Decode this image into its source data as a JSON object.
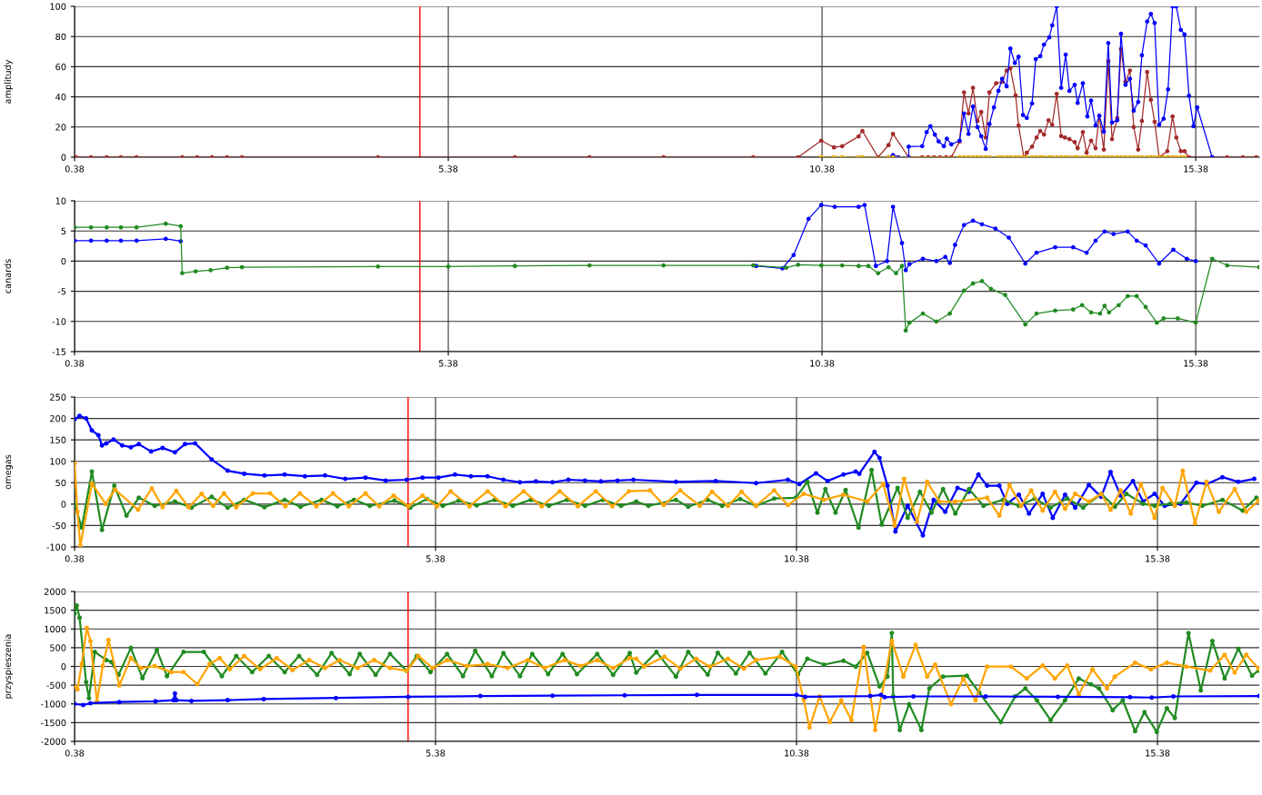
{
  "chart_data": [
    {
      "type": "line",
      "ylabel": "amplitudy",
      "xlim": [
        0.38,
        16.23
      ],
      "xticks": [
        0.38,
        5.38,
        10.38,
        15.38
      ],
      "ylim": [
        0,
        100
      ],
      "yticks": [
        0,
        20,
        40,
        60,
        80,
        100
      ],
      "grid": true,
      "marker": "circle",
      "line_style": "solid",
      "ref_lines": [
        {
          "axis": "x",
          "value": 5.0,
          "color": "#ff0000"
        }
      ],
      "series": [
        {
          "color": "#a52a2a",
          "x": [
            0.4,
            0.6,
            0.81,
            1.0,
            1.21,
            1.82,
            2.02,
            2.22,
            2.42,
            2.62,
            4.44,
            6.27,
            7.27,
            8.26,
            9.46,
            10.06,
            10.37,
            10.54,
            10.65,
            10.87,
            10.92,
            11.13,
            11.27,
            11.33,
            11.54,
            11.72,
            11.8,
            11.88,
            11.96,
            12.04,
            12.11,
            12.22,
            12.28,
            12.34,
            12.4,
            12.46,
            12.51,
            12.57,
            12.62,
            12.71,
            12.79,
            12.85,
            12.9,
            12.97,
            13.01,
            13.08,
            13.12,
            13.19,
            13.25,
            13.3,
            13.35,
            13.41,
            13.46,
            13.52,
            13.58,
            13.63,
            13.69,
            13.76,
            13.8,
            13.87,
            13.92,
            13.98,
            14.04,
            14.09,
            14.15,
            14.21,
            14.26,
            14.33,
            14.38,
            14.44,
            14.5,
            14.55,
            14.61,
            14.66,
            14.73,
            14.78,
            14.83,
            14.89,
            15.0,
            15.07,
            15.12,
            15.18,
            15.23,
            15.29,
            15.6,
            15.8,
            16.01,
            16.19
          ],
          "values": [
            0,
            0,
            0,
            0,
            0,
            0,
            0,
            0,
            0,
            0,
            0,
            0,
            0,
            0,
            0,
            0,
            11,
            6.5,
            7.3,
            13.8,
            17.4,
            0,
            8,
            15.4,
            0,
            0,
            0,
            0,
            0,
            0,
            0,
            10.3,
            43,
            29,
            46,
            24,
            30,
            13,
            43,
            49,
            50,
            57.5,
            59,
            41,
            21,
            0,
            3,
            7,
            13,
            17.4,
            15,
            24.5,
            21.5,
            42,
            14,
            13,
            12,
            10,
            6,
            16.6,
            3,
            11,
            6,
            27.5,
            5,
            63.6,
            12,
            26,
            71.7,
            50,
            57.5,
            20,
            5,
            24,
            56.5,
            38,
            23.5,
            0,
            4,
            27,
            13,
            4,
            4,
            0,
            0,
            0,
            0,
            0
          ]
        },
        {
          "color": "#0000ff",
          "x": [
            11.27,
            11.33,
            11.4,
            11.54,
            11.54,
            11.72,
            11.78,
            11.83,
            11.89,
            11.94,
            12.01,
            12.05,
            12.11,
            12.22,
            12.28,
            12.34,
            12.4,
            12.46,
            12.51,
            12.57,
            12.62,
            12.68,
            12.74,
            12.79,
            12.85,
            12.9,
            12.96,
            13.01,
            13.07,
            13.12,
            13.19,
            13.24,
            13.3,
            13.35,
            13.42,
            13.46,
            13.52,
            13.58,
            13.64,
            13.69,
            13.76,
            13.8,
            13.87,
            13.93,
            13.98,
            14.04,
            14.09,
            14.15,
            14.21,
            14.26,
            14.33,
            14.38,
            14.44,
            14.5,
            14.55,
            14.61,
            14.66,
            14.73,
            14.78,
            14.83,
            14.89,
            14.95,
            15.01,
            15.07,
            15.12,
            15.18,
            15.23,
            15.29,
            15.35,
            15.4,
            15.6
          ],
          "values": [
            0,
            1.4,
            0,
            0,
            7,
            7.3,
            16.6,
            20.6,
            15,
            10.5,
            7.3,
            12.3,
            8.5,
            11,
            29,
            15.4,
            33.6,
            20,
            14,
            5.5,
            22,
            33,
            44,
            52,
            47,
            72,
            62.5,
            66.6,
            28,
            26,
            35.6,
            65,
            67,
            74.7,
            79.4,
            87.4,
            100,
            46,
            68,
            44,
            48,
            36,
            49,
            27,
            37.6,
            21,
            27.5,
            17,
            75.7,
            23,
            24.5,
            81.8,
            48,
            52,
            30.8,
            36.6,
            67.6,
            90,
            95,
            89,
            21.5,
            25.5,
            45,
            100,
            100,
            84.4,
            81.4,
            40.7,
            20.6,
            33,
            0
          ]
        },
        {
          "color": "#e0a800",
          "x": [
            10.37,
            10.54,
            10.65,
            10.87,
            10.92,
            11.27,
            11.33,
            12.22,
            12.28,
            12.34,
            12.4,
            12.46,
            12.51,
            12.57,
            12.62,
            12.74,
            12.79,
            12.85,
            12.9,
            12.96,
            13.01,
            13.07,
            13.12,
            13.19,
            13.24,
            13.3,
            13.35,
            13.42,
            13.46,
            13.52,
            13.58,
            13.64,
            13.69,
            13.76,
            13.8,
            13.87,
            13.93,
            13.98,
            14.04,
            14.09,
            14.15,
            14.21,
            14.26,
            14.33,
            14.38,
            14.44,
            14.5,
            14.55,
            14.61,
            14.66,
            14.73,
            14.78,
            14.83,
            14.89,
            14.95,
            15.01,
            15.07,
            15.12,
            15.18,
            15.23
          ],
          "values": [
            0,
            0,
            0,
            0,
            0,
            0,
            0,
            0,
            0,
            0,
            0,
            0,
            0,
            0,
            0,
            0,
            0,
            0,
            0,
            0,
            0,
            0,
            0,
            0,
            0,
            0,
            0,
            0,
            0,
            0,
            0,
            0,
            0,
            0,
            0,
            0,
            0,
            0,
            0,
            0,
            0,
            0,
            0,
            0,
            0,
            0,
            0,
            0,
            0,
            0,
            0,
            0,
            0,
            0,
            0,
            0,
            0,
            0,
            0,
            0
          ]
        }
      ]
    },
    {
      "type": "line",
      "ylabel": "canards",
      "xlim": [
        0.38,
        16.23
      ],
      "xticks": [
        0.38,
        5.38,
        10.38,
        15.38
      ],
      "ylim": [
        -15,
        10
      ],
      "yticks": [
        -15,
        -10,
        -5,
        0,
        5,
        10
      ],
      "grid": true,
      "marker": "circle",
      "line_style": "solid",
      "ref_lines": [
        {
          "axis": "x",
          "value": 5.0,
          "color": "#ff0000"
        }
      ],
      "series": [
        {
          "color": "#0000ff",
          "x": [
            0.38,
            0.6,
            0.81,
            1.0,
            1.21,
            1.6,
            1.8,
            1.82,
            1.9,
            9.5,
            9.85,
            10.0,
            10.2,
            10.37,
            10.55,
            10.87,
            10.95,
            11.1,
            11.25,
            11.33,
            11.45,
            11.5,
            11.55,
            11.73,
            11.91,
            12.03,
            12.09,
            12.16,
            12.28,
            12.4,
            12.52,
            12.7,
            12.88,
            13.1,
            13.25,
            13.5,
            13.74,
            13.92,
            14.04,
            14.16,
            14.28,
            14.47,
            14.59,
            14.71,
            14.89,
            15.08,
            15.26,
            15.38
          ],
          "values": [
            3.4,
            3.4,
            3.4,
            3.4,
            3.4,
            3.7,
            3.3,
            null,
            null,
            -0.8,
            -1.2,
            1.0,
            7.0,
            9.3,
            9.0,
            9.0,
            9.3,
            -0.8,
            0.0,
            9.0,
            3.0,
            -1.5,
            -0.5,
            0.4,
            0,
            0.7,
            -0.3,
            2.7,
            6,
            6.7,
            6.1,
            5.4,
            3.9,
            -0.4,
            1.4,
            2.3,
            2.3,
            1.4,
            3.4,
            4.9,
            4.5,
            4.9,
            3.4,
            2.6,
            -0.4,
            1.9,
            0.4,
            0
          ]
        },
        {
          "color": "#228b22",
          "x": [
            0.38,
            0.6,
            0.81,
            1.0,
            1.21,
            1.6,
            1.8,
            1.82,
            2.0,
            2.2,
            2.42,
            2.62,
            4.44,
            5.38,
            6.27,
            7.27,
            8.26,
            9.46,
            9.9,
            10.06,
            10.37,
            10.65,
            10.87,
            11.0,
            11.13,
            11.27,
            11.37,
            11.45,
            11.5,
            11.55,
            11.73,
            11.91,
            12.09,
            12.28,
            12.4,
            12.52,
            12.64,
            12.83,
            13.1,
            13.25,
            13.5,
            13.74,
            13.86,
            13.98,
            14.1,
            14.16,
            14.22,
            14.35,
            14.47,
            14.59,
            14.71,
            14.86,
            14.95,
            15.14,
            15.38,
            15.6,
            15.8,
            16.23
          ],
          "values": [
            5.6,
            5.6,
            5.6,
            5.6,
            5.6,
            6.2,
            5.8,
            -2.0,
            -1.7,
            -1.5,
            -1.1,
            -1.0,
            -0.9,
            -0.9,
            -0.8,
            -0.7,
            -0.7,
            -0.7,
            -1.1,
            -0.6,
            -0.7,
            -0.7,
            -0.8,
            -0.8,
            -2.0,
            -1.0,
            -2.0,
            -0.8,
            -11.5,
            -10.2,
            -8.7,
            -10,
            -8.7,
            -4.9,
            -3.7,
            -3.3,
            -4.6,
            -5.6,
            -10.5,
            -8.7,
            -8.2,
            -8,
            -7.3,
            -8.5,
            -8.7,
            -7.4,
            -8.5,
            -7.3,
            -5.8,
            -5.8,
            -7.6,
            -10.2,
            -9.5,
            -9.5,
            -10.2,
            0.4,
            -0.7,
            -1.0
          ]
        }
      ]
    },
    {
      "type": "line",
      "ylabel": "omegas",
      "xlim": [
        0.38,
        16.79
      ],
      "xticks": [
        0.38,
        5.38,
        10.38,
        15.38
      ],
      "ylim": [
        -100,
        250
      ],
      "yticks": [
        -100,
        -50,
        0,
        50,
        100,
        150,
        200,
        250
      ],
      "grid": true,
      "marker": "circle",
      "line_style": "solid",
      "ref_lines": [
        {
          "axis": "x",
          "value": 5.0,
          "color": "#ff0000"
        }
      ],
      "series": [
        {
          "color": "#0000ff",
          "x": [
            0.38,
            0.45,
            0.54,
            0.62,
            0.71,
            0.76,
            0.82,
            0.92,
            1.04,
            1.16,
            1.27,
            1.44,
            1.6,
            1.77,
            1.91,
            2.05,
            2.28,
            2.5,
            2.73,
            3.01,
            3.29,
            3.57,
            3.85,
            4.13,
            4.41,
            4.69,
            4.98,
            5.2,
            5.42,
            5.65,
            5.87,
            6.1,
            6.32,
            6.55,
            6.77,
            7.0,
            7.22,
            7.45,
            7.67,
            7.9,
            8.12,
            8.71,
            9.26,
            9.82,
            10.26,
            10.42,
            10.65,
            10.81,
            11.03,
            11.2,
            11.25,
            11.46,
            11.53,
            11.64,
            11.75,
            11.92,
            12.13,
            12.28,
            12.44,
            12.61,
            12.77,
            12.9,
            13.02,
            13.19,
            13.3,
            13.46,
            13.6,
            13.79,
            13.93,
            14.1,
            14.24,
            14.43,
            14.6,
            14.73,
            14.87,
            15.04,
            15.18,
            15.34,
            15.48,
            15.7,
            15.92,
            16.06,
            16.28,
            16.5,
            16.72
          ],
          "values": [
            198,
            206,
            200,
            172,
            161,
            137,
            142,
            151,
            137,
            133,
            140,
            123,
            131,
            121,
            140,
            142,
            104,
            78,
            71,
            67,
            69,
            65,
            67,
            59,
            62,
            55,
            57,
            62,
            62,
            69,
            65,
            65,
            57,
            51,
            53,
            51,
            57,
            55,
            53,
            55,
            57,
            52,
            54,
            49,
            57,
            47,
            72,
            54,
            69,
            76,
            71,
            122,
            108,
            43,
            -64,
            -4,
            -73,
            10,
            -18,
            38,
            29,
            69,
            43,
            43,
            1,
            22,
            -22,
            24,
            -32,
            22,
            -8,
            45,
            17,
            75,
            20,
            54,
            6,
            24,
            -4,
            1,
            50,
            47,
            63,
            52,
            59
          ]
        },
        {
          "color": "#228b22",
          "x": [
            0.38,
            0.48,
            0.62,
            0.76,
            0.93,
            1.1,
            1.27,
            1.49,
            1.77,
            2.0,
            2.28,
            2.5,
            2.73,
            3.01,
            3.29,
            3.51,
            3.8,
            4.02,
            4.25,
            4.47,
            4.81,
            5.03,
            5.26,
            5.48,
            5.7,
            5.95,
            6.2,
            6.45,
            6.7,
            6.95,
            7.2,
            7.45,
            7.7,
            7.95,
            8.16,
            8.33,
            8.71,
            8.88,
            9.15,
            9.35,
            9.6,
            9.82,
            10.07,
            10.37,
            10.53,
            10.67,
            10.78,
            10.92,
            11.06,
            11.24,
            11.42,
            11.56,
            11.78,
            11.92,
            12.09,
            12.25,
            12.41,
            12.58,
            12.77,
            12.97,
            13.24,
            13.46,
            13.68,
            13.9,
            14.13,
            14.35,
            14.6,
            14.79,
            14.95,
            15.18,
            15.34,
            15.56,
            15.78,
            16.0,
            16.28,
            16.56,
            16.75
          ],
          "values": [
            0,
            -55,
            76,
            -60,
            43,
            -27,
            15,
            -4,
            6,
            -8,
            17,
            -8,
            10,
            -7,
            10,
            -6,
            10,
            -5,
            10,
            -4,
            8,
            -8,
            12,
            -4,
            8,
            -3,
            10,
            -4,
            10,
            -4,
            10,
            -4,
            10,
            -4,
            6,
            -4,
            10,
            -6,
            10,
            -4,
            12,
            -4,
            13,
            15,
            52,
            -20,
            35,
            -20,
            33,
            -55,
            80,
            -48,
            38,
            -32,
            29,
            -20,
            35,
            -22,
            35,
            -4,
            10,
            -4,
            13,
            -8,
            13,
            -8,
            24,
            -6,
            24,
            1,
            -4,
            1,
            4,
            -4,
            10,
            -15,
            15
          ]
        },
        {
          "color": "#ffa500",
          "x": [
            0.38,
            0.42,
            0.46,
            0.62,
            0.81,
            0.94,
            1.26,
            1.45,
            1.6,
            1.79,
            1.96,
            2.14,
            2.3,
            2.45,
            2.62,
            2.85,
            3.09,
            3.3,
            3.5,
            3.73,
            3.96,
            4.18,
            4.41,
            4.6,
            4.8,
            5.0,
            5.2,
            5.4,
            5.59,
            5.85,
            6.1,
            6.35,
            6.6,
            6.85,
            7.1,
            7.35,
            7.6,
            7.83,
            8.06,
            8.35,
            8.54,
            8.77,
            9.04,
            9.21,
            9.43,
            9.62,
            9.82,
            10.07,
            10.26,
            10.48,
            10.76,
            11.03,
            11.36,
            11.58,
            11.74,
            11.87,
            12.05,
            12.19,
            12.36,
            12.58,
            13.02,
            13.19,
            13.33,
            13.49,
            13.63,
            13.79,
            13.96,
            14.1,
            14.24,
            14.43,
            14.6,
            14.73,
            14.87,
            15.01,
            15.15,
            15.34,
            15.45,
            15.62,
            15.73,
            15.9,
            16.06,
            16.23,
            16.45,
            16.61,
            16.78
          ],
          "values": [
            95,
            -18,
            -98,
            48,
            1,
            34,
            -13,
            37,
            -7,
            31,
            -7,
            24,
            -4,
            25,
            -7,
            25,
            25,
            -5,
            25,
            -5,
            25,
            -5,
            25,
            -5,
            20,
            -5,
            20,
            -5,
            30,
            -5,
            30,
            -5,
            30,
            -5,
            30,
            -5,
            30,
            -5,
            30,
            32,
            -2,
            32,
            -4,
            29,
            -4,
            29,
            -4,
            32,
            -2,
            24,
            10,
            22,
            6,
            47,
            -50,
            59,
            -41,
            52,
            6,
            6,
            15,
            -27,
            45,
            -4,
            32,
            -15,
            29,
            -11,
            24,
            6,
            24,
            -13,
            32,
            -22,
            47,
            -32,
            38,
            -4,
            78,
            -45,
            52,
            -18,
            35,
            -18,
            8
          ]
        }
      ]
    },
    {
      "type": "line",
      "ylabel": "przyspieszenia",
      "xlim": [
        0.38,
        16.79
      ],
      "xticks": [
        0.38,
        5.38,
        10.38,
        15.38
      ],
      "ylim": [
        -2000,
        2000
      ],
      "yticks": [
        -2000,
        -1500,
        -1000,
        -500,
        0,
        500,
        1000,
        1500,
        2000
      ],
      "grid": true,
      "marker": "circle",
      "line_style": "solid",
      "ref_lines": [
        {
          "axis": "x",
          "value": 5.0,
          "color": "#ff0000"
        }
      ],
      "series": [
        {
          "color": "#228b22",
          "x": [
            0.38,
            0.41,
            0.45,
            0.54,
            0.58,
            0.66,
            0.82,
            0.89,
            0.99,
            1.16,
            1.32,
            1.52,
            1.66,
            1.89,
            2.17,
            2.42,
            2.62,
            2.84,
            3.07,
            3.29,
            3.49,
            3.74,
            3.94,
            4.19,
            4.33,
            4.55,
            4.75,
            4.98,
            5.12,
            5.31,
            5.54,
            5.76,
            5.93,
            6.16,
            6.32,
            6.55,
            6.72,
            6.94,
            7.14,
            7.34,
            7.62,
            7.84,
            8.07,
            8.16,
            8.44,
            8.71,
            8.88,
            9.15,
            9.29,
            9.54,
            9.73,
            9.95,
            10.18,
            10.4,
            10.53,
            10.76,
            11.03,
            11.2,
            11.36,
            11.53,
            11.64,
            11.7,
            11.72,
            11.81,
            11.94,
            12.11,
            12.22,
            12.41,
            12.74,
            12.91,
            13.21,
            13.41,
            13.55,
            13.71,
            13.9,
            14.1,
            14.29,
            14.46,
            14.57,
            14.76,
            14.9,
            15.07,
            15.2,
            15.37,
            15.51,
            15.62,
            15.81,
            15.98,
            16.14,
            16.31,
            16.5,
            16.69,
            16.78
          ],
          "values": [
            1408,
            1623,
            1300,
            -420,
            -850,
            387,
            172,
            118,
            -226,
            494,
            -312,
            440,
            -258,
            387,
            387,
            -258,
            280,
            -150,
            280,
            -150,
            280,
            -226,
            355,
            -204,
            333,
            -226,
            333,
            -118,
            280,
            -150,
            333,
            -258,
            420,
            -258,
            355,
            -258,
            333,
            -204,
            333,
            -204,
            333,
            -226,
            355,
            -164,
            385,
            -270,
            385,
            -216,
            364,
            -185,
            364,
            -185,
            385,
            -216,
            206,
            48,
            153,
            -5,
            364,
            -533,
            -270,
            892,
            -797,
            -1695,
            -1008,
            -1695,
            -586,
            -270,
            -248,
            -692,
            -1484,
            -797,
            -586,
            -903,
            -1431,
            -903,
            -322,
            -480,
            -586,
            -1167,
            -903,
            -1727,
            -1220,
            -1748,
            -1114,
            -1378,
            892,
            -639,
            681,
            -322,
            470,
            -248,
            -111
          ]
        },
        {
          "color": "#ffa500",
          "x": [
            0.38,
            0.42,
            0.48,
            0.55,
            0.6,
            0.69,
            0.77,
            0.85,
            1.0,
            1.16,
            1.3,
            1.49,
            1.72,
            1.89,
            2.08,
            2.25,
            2.39,
            2.53,
            2.73,
            2.95,
            3.18,
            3.4,
            3.63,
            3.85,
            4.05,
            4.3,
            4.53,
            4.75,
            4.98,
            5.14,
            5.34,
            5.54,
            5.82,
            6.1,
            6.38,
            6.66,
            6.89,
            7.17,
            7.39,
            7.62,
            7.84,
            8.07,
            8.16,
            8.27,
            8.55,
            8.77,
            8.99,
            9.18,
            9.43,
            9.65,
            9.82,
            10.15,
            10.37,
            10.48,
            10.56,
            10.7,
            10.84,
            11.0,
            11.14,
            11.31,
            11.47,
            11.7,
            11.86,
            12.03,
            12.19,
            12.3,
            12.52,
            12.69,
            12.86,
            13.02,
            13.35,
            13.57,
            13.79,
            13.96,
            14.13,
            14.29,
            14.48,
            14.68,
            14.79,
            15.07,
            15.29,
            15.51,
            15.78,
            16.11,
            16.31,
            16.45,
            16.61,
            16.78
          ],
          "values": [
            -548,
            -613,
            64,
            1032,
            677,
            -935,
            10,
            710,
            -505,
            225,
            -43,
            10,
            -150,
            -150,
            -473,
            64,
            225,
            -75,
            280,
            -75,
            225,
            -97,
            172,
            -43,
            172,
            -43,
            172,
            -43,
            -118,
            280,
            -43,
            172,
            10,
            64,
            -43,
            172,
            -43,
            172,
            10,
            172,
            -43,
            225,
            206,
            -5,
            259,
            -58,
            206,
            -5,
            206,
            -58,
            174,
            259,
            -5,
            -892,
            -1632,
            -797,
            -1484,
            -903,
            -1431,
            522,
            -1695,
            681,
            -270,
            575,
            -270,
            48,
            -1008,
            -322,
            -903,
            -5,
            -5,
            -322,
            26,
            -322,
            26,
            -744,
            -79,
            -586,
            -270,
            100,
            -79,
            100,
            -5,
            -111,
            312,
            -164,
            312,
            -58
          ]
        },
        {
          "color": "#0000ff",
          "x": [
            0.38,
            0.5,
            0.6,
            1.0,
            1.5,
            1.75,
            1.77,
            1.79,
            2.0,
            2.5,
            3.0,
            4.0,
            5.0,
            6.0,
            7.0,
            8.0,
            9.0,
            10.38,
            10.5,
            11.4,
            11.55,
            11.6,
            12.0,
            13.0,
            14.0,
            15.0,
            15.3,
            15.6,
            16.79
          ],
          "values": [
            -1000,
            -1030,
            -980,
            -950,
            -930,
            -900,
            -720,
            -900,
            -920,
            -900,
            -870,
            -840,
            -810,
            -790,
            -780,
            -770,
            -760,
            -760,
            -810,
            -790,
            -760,
            -820,
            -800,
            -800,
            -810,
            -820,
            -830,
            -800,
            -790
          ]
        }
      ]
    }
  ]
}
